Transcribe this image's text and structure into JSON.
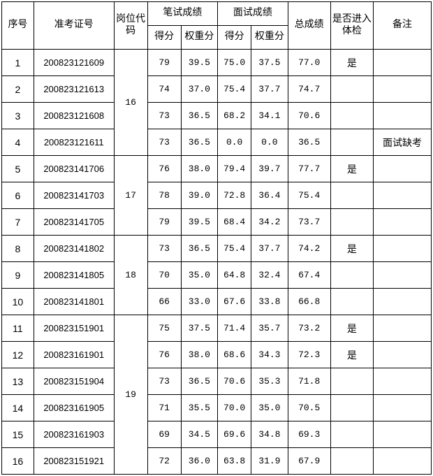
{
  "headers": {
    "seq": "序号",
    "exam_id": "准考证号",
    "post_code": "岗位代码",
    "written": "笔试成绩",
    "interview": "面试成绩",
    "score": "得分",
    "weighted": "权重分",
    "total": "总成绩",
    "pass": "是否进入体检",
    "note": "备注"
  },
  "groups": [
    {
      "post_code": "16",
      "rows": [
        {
          "seq": "1",
          "exam_id": "200823121609",
          "ws": "79",
          "ww": "39.5",
          "is": "75.0",
          "iw": "37.5",
          "total": "77.0",
          "pass": "是",
          "note": ""
        },
        {
          "seq": "2",
          "exam_id": "200823121613",
          "ws": "74",
          "ww": "37.0",
          "is": "75.4",
          "iw": "37.7",
          "total": "74.7",
          "pass": "",
          "note": ""
        },
        {
          "seq": "3",
          "exam_id": "200823121608",
          "ws": "73",
          "ww": "36.5",
          "is": "68.2",
          "iw": "34.1",
          "total": "70.6",
          "pass": "",
          "note": ""
        },
        {
          "seq": "4",
          "exam_id": "200823121611",
          "ws": "73",
          "ww": "36.5",
          "is": "0.0",
          "iw": "0.0",
          "total": "36.5",
          "pass": "",
          "note": "面试缺考"
        }
      ]
    },
    {
      "post_code": "17",
      "rows": [
        {
          "seq": "5",
          "exam_id": "200823141706",
          "ws": "76",
          "ww": "38.0",
          "is": "79.4",
          "iw": "39.7",
          "total": "77.7",
          "pass": "是",
          "note": ""
        },
        {
          "seq": "6",
          "exam_id": "200823141703",
          "ws": "78",
          "ww": "39.0",
          "is": "72.8",
          "iw": "36.4",
          "total": "75.4",
          "pass": "",
          "note": ""
        },
        {
          "seq": "7",
          "exam_id": "200823141705",
          "ws": "79",
          "ww": "39.5",
          "is": "68.4",
          "iw": "34.2",
          "total": "73.7",
          "pass": "",
          "note": ""
        }
      ]
    },
    {
      "post_code": "18",
      "rows": [
        {
          "seq": "8",
          "exam_id": "200823141802",
          "ws": "73",
          "ww": "36.5",
          "is": "75.4",
          "iw": "37.7",
          "total": "74.2",
          "pass": "是",
          "note": ""
        },
        {
          "seq": "9",
          "exam_id": "200823141805",
          "ws": "70",
          "ww": "35.0",
          "is": "64.8",
          "iw": "32.4",
          "total": "67.4",
          "pass": "",
          "note": ""
        },
        {
          "seq": "10",
          "exam_id": "200823141801",
          "ws": "66",
          "ww": "33.0",
          "is": "67.6",
          "iw": "33.8",
          "total": "66.8",
          "pass": "",
          "note": ""
        }
      ]
    },
    {
      "post_code": "19",
      "rows": [
        {
          "seq": "11",
          "exam_id": "200823151901",
          "ws": "75",
          "ww": "37.5",
          "is": "71.4",
          "iw": "35.7",
          "total": "73.2",
          "pass": "是",
          "note": ""
        },
        {
          "seq": "12",
          "exam_id": "200823161901",
          "ws": "76",
          "ww": "38.0",
          "is": "68.6",
          "iw": "34.3",
          "total": "72.3",
          "pass": "是",
          "note": ""
        },
        {
          "seq": "13",
          "exam_id": "200823151904",
          "ws": "73",
          "ww": "36.5",
          "is": "70.6",
          "iw": "35.3",
          "total": "71.8",
          "pass": "",
          "note": ""
        },
        {
          "seq": "14",
          "exam_id": "200823161905",
          "ws": "71",
          "ww": "35.5",
          "is": "70.0",
          "iw": "35.0",
          "total": "70.5",
          "pass": "",
          "note": ""
        },
        {
          "seq": "15",
          "exam_id": "200823161903",
          "ws": "69",
          "ww": "34.5",
          "is": "69.6",
          "iw": "34.8",
          "total": "69.3",
          "pass": "",
          "note": ""
        },
        {
          "seq": "16",
          "exam_id": "200823151921",
          "ws": "72",
          "ww": "36.0",
          "is": "63.8",
          "iw": "31.9",
          "total": "67.9",
          "pass": "",
          "note": ""
        }
      ]
    }
  ]
}
